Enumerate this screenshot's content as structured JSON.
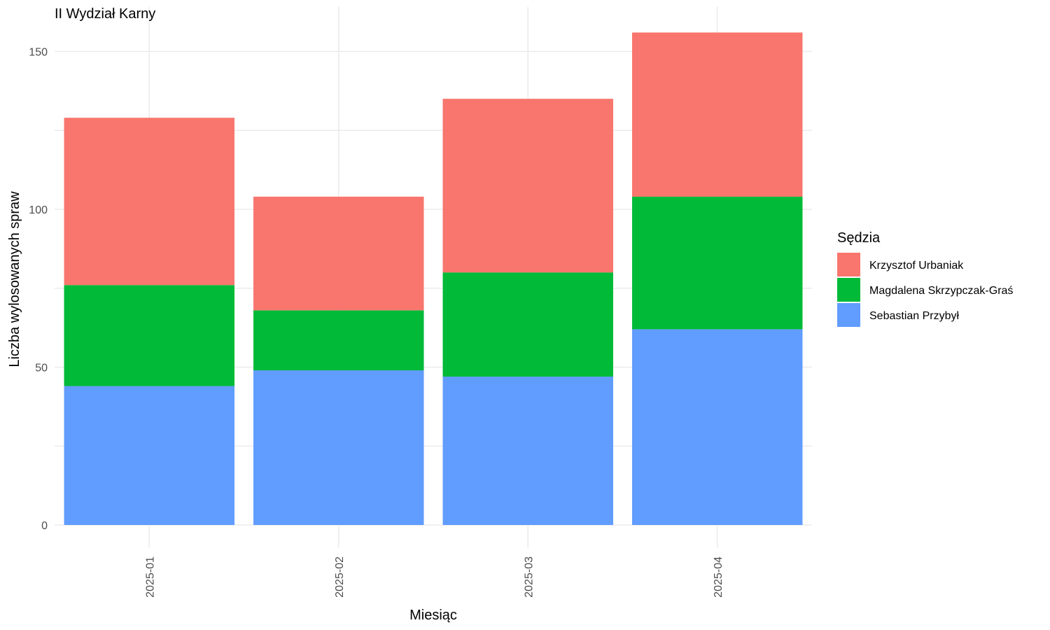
{
  "chart_data": {
    "type": "bar",
    "stacked": true,
    "title": "II Wydział Karny",
    "xlabel": "Miesiąc",
    "ylabel": "Liczba wylosowanych spraw",
    "categories": [
      "2025-01",
      "2025-02",
      "2025-03",
      "2025-04"
    ],
    "ylim": [
      0,
      160
    ],
    "yticks": [
      0,
      50,
      100,
      150
    ],
    "grid": true,
    "legend": {
      "title": "Sędzia",
      "position": "right"
    },
    "series": [
      {
        "name": "Sebastian Przybył",
        "color": "#619CFF",
        "values": [
          44,
          49,
          47,
          62
        ]
      },
      {
        "name": "Magdalena Skrzypczak-Graś",
        "color": "#00BA38",
        "values": [
          32,
          19,
          33,
          42
        ]
      },
      {
        "name": "Krzysztof Urbaniak",
        "color": "#F8766D",
        "values": [
          53,
          36,
          55,
          52
        ]
      }
    ],
    "legend_order": [
      "Krzysztof Urbaniak",
      "Magdalena Skrzypczak-Graś",
      "Sebastian Przybył"
    ]
  }
}
